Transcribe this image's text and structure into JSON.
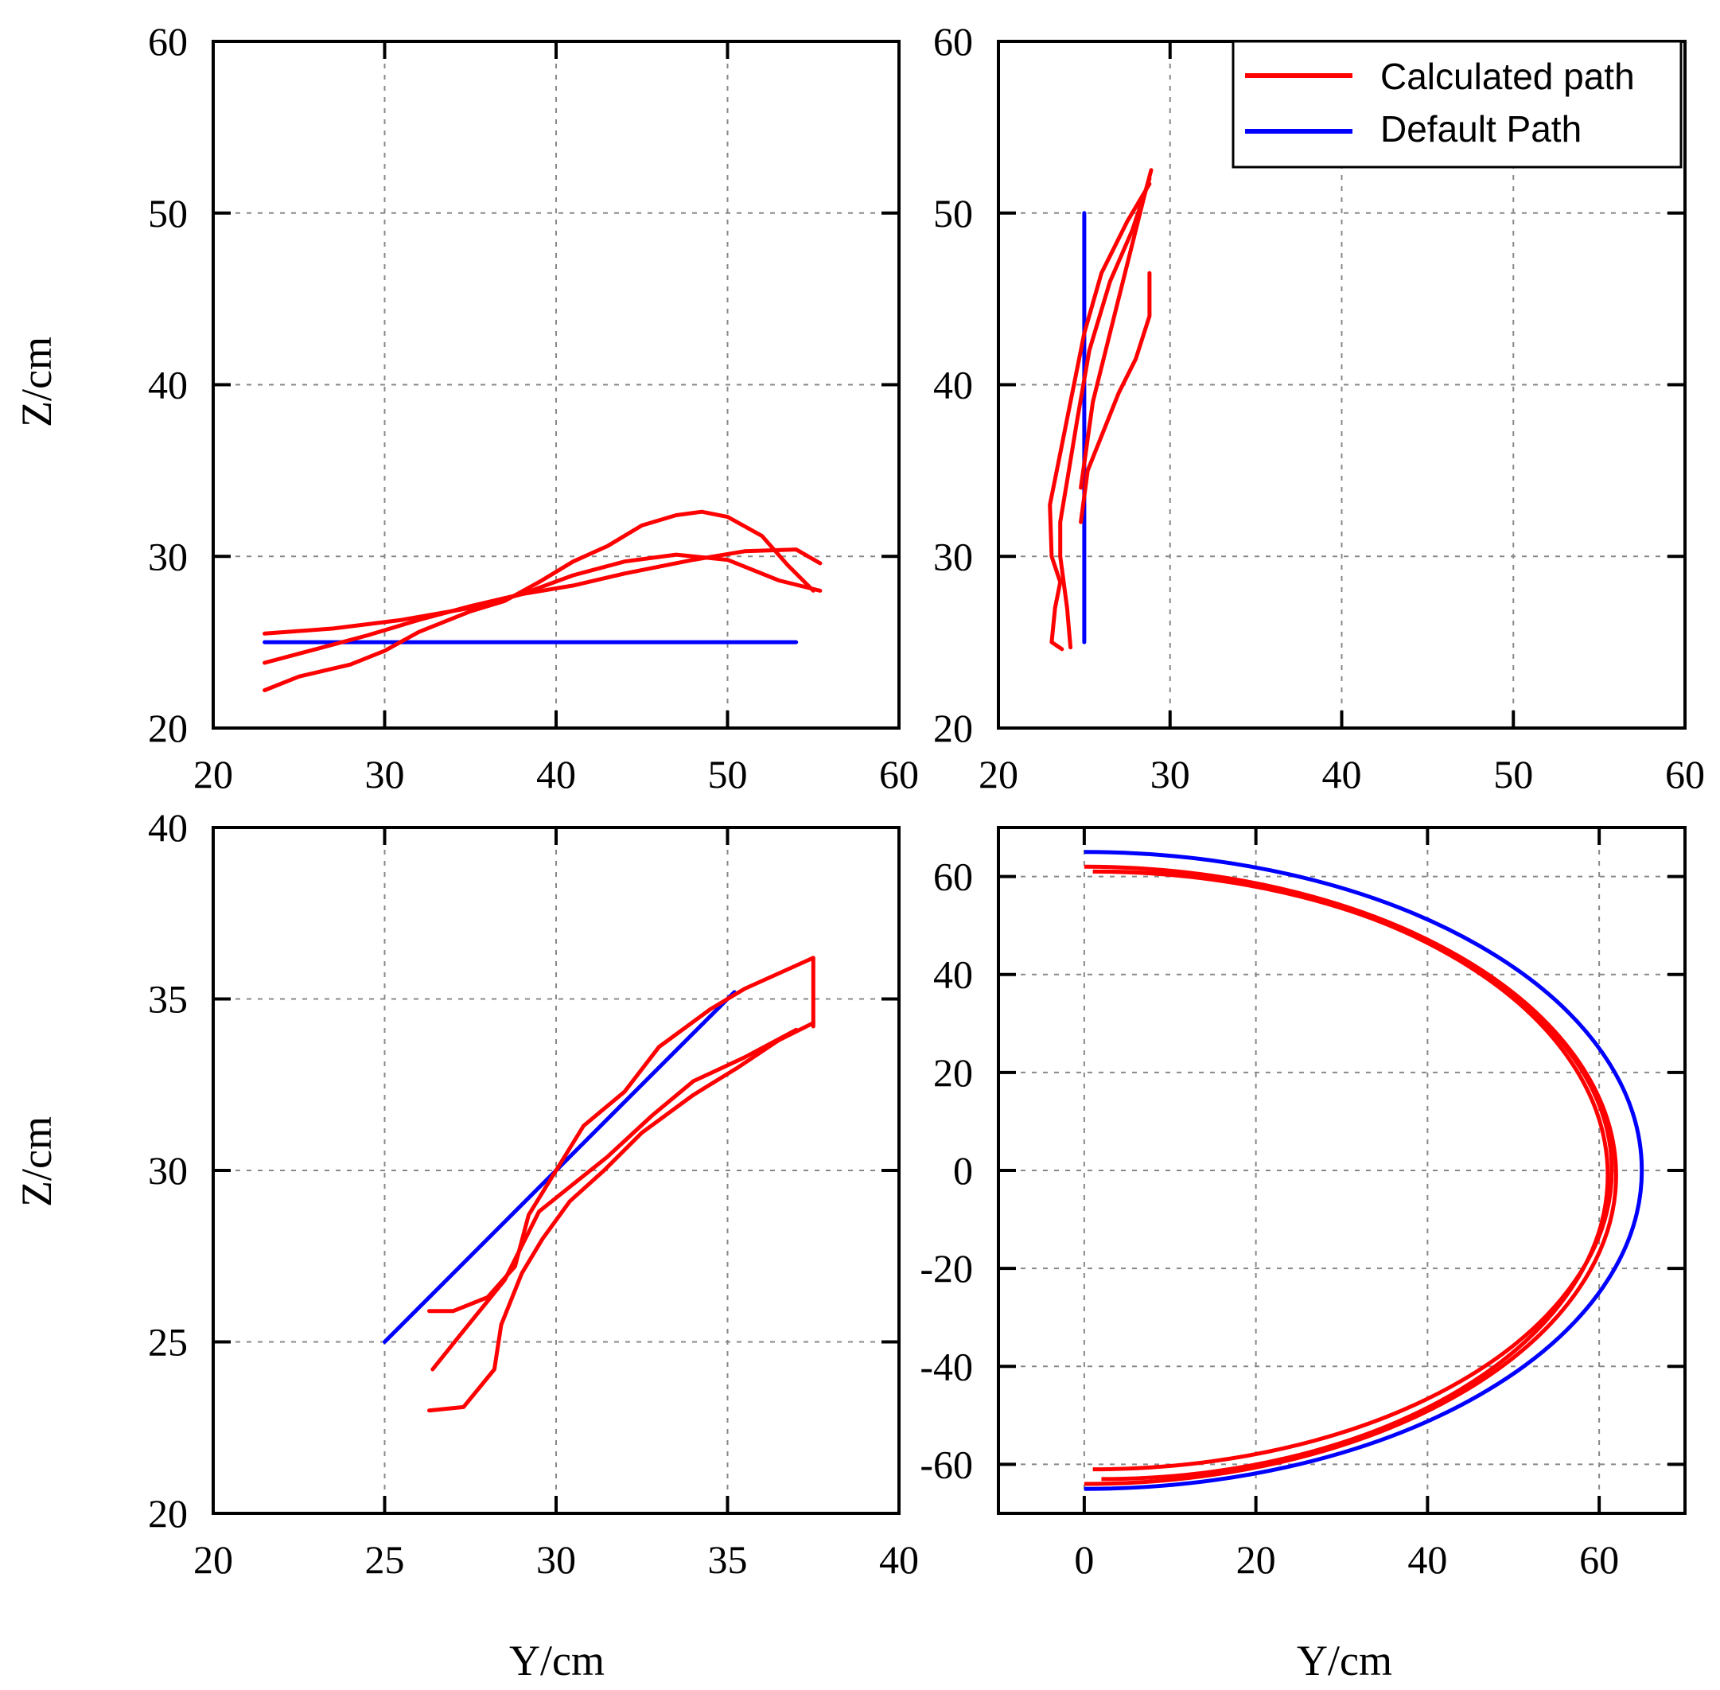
{
  "legend": {
    "calculated_label": "Calculated path",
    "default_label": "Default Path",
    "calculated_color": "#ff0000",
    "default_color": "#0000ff"
  },
  "chart_data": [
    {
      "type": "line",
      "panel": "top-left",
      "xlim": [
        20,
        60
      ],
      "ylim": [
        20,
        60
      ],
      "xticks": [
        20,
        30,
        40,
        50,
        60
      ],
      "yticks": [
        20,
        30,
        40,
        50,
        60
      ],
      "xlabel": "",
      "ylabel": "Z/cm",
      "grid": true,
      "series": [
        {
          "name": "Default Path",
          "color": "#0000ff",
          "points": [
            [
              23,
              25
            ],
            [
              54,
              25
            ]
          ]
        },
        {
          "name": "Calculated path",
          "color": "#ff0000",
          "points": [
            [
              23,
              25.5
            ],
            [
              27,
              25.8
            ],
            [
              31,
              26.3
            ],
            [
              35,
              27
            ],
            [
              38,
              27.8
            ],
            [
              41,
              28.3
            ],
            [
              44,
              29
            ],
            [
              48,
              29.8
            ],
            [
              51,
              30.3
            ],
            [
              54,
              30.4
            ],
            [
              55.4,
              29.6
            ]
          ]
        },
        {
          "name": "Calculated path",
          "color": "#ff0000",
          "points": [
            [
              23,
              23.8
            ],
            [
              26,
              24.6
            ],
            [
              29,
              25.4
            ],
            [
              32,
              26.3
            ],
            [
              35,
              27.1
            ],
            [
              38,
              27.8
            ],
            [
              41,
              28.9
            ],
            [
              44,
              29.7
            ],
            [
              47,
              30.1
            ],
            [
              50,
              29.8
            ],
            [
              53,
              28.6
            ],
            [
              55.4,
              28
            ]
          ]
        },
        {
          "name": "Calculated path",
          "color": "#ff0000",
          "points": [
            [
              23,
              22.2
            ],
            [
              25,
              23
            ],
            [
              28,
              23.7
            ],
            [
              30,
              24.5
            ],
            [
              32,
              25.6
            ],
            [
              35,
              26.8
            ],
            [
              37,
              27.4
            ],
            [
              39,
              28.5
            ],
            [
              41,
              29.7
            ],
            [
              43,
              30.6
            ],
            [
              45,
              31.8
            ],
            [
              47,
              32.4
            ],
            [
              48.5,
              32.6
            ],
            [
              50,
              32.3
            ],
            [
              52,
              31.2
            ],
            [
              53.5,
              29.5
            ],
            [
              55,
              28
            ]
          ]
        }
      ]
    },
    {
      "type": "line",
      "panel": "top-right",
      "xlim": [
        20,
        60
      ],
      "ylim": [
        20,
        60
      ],
      "xticks": [
        20,
        30,
        40,
        50,
        60
      ],
      "yticks": [
        20,
        30,
        40,
        50,
        60
      ],
      "xlabel": "",
      "ylabel": "",
      "grid": true,
      "series": [
        {
          "name": "Default Path",
          "color": "#0000ff",
          "points": [
            [
              25,
              25
            ],
            [
              25,
              50
            ]
          ]
        },
        {
          "name": "Calculated path",
          "color": "#ff0000",
          "points": [
            [
              24.8,
              34
            ],
            [
              25.5,
              39
            ],
            [
              26.5,
              43
            ],
            [
              27.5,
              47
            ],
            [
              28.5,
              51
            ],
            [
              28.9,
              52.5
            ]
          ]
        },
        {
          "name": "Calculated path",
          "color": "#ff0000",
          "points": [
            [
              23.7,
              24.6
            ],
            [
              23.1,
              25
            ],
            [
              23.3,
              27
            ],
            [
              23.6,
              28.5
            ],
            [
              23.1,
              30
            ],
            [
              23,
              33
            ],
            [
              23.6,
              36
            ],
            [
              24.2,
              39
            ],
            [
              25,
              43
            ],
            [
              26,
              46.5
            ],
            [
              27.5,
              49.5
            ],
            [
              28.8,
              51.7
            ]
          ]
        },
        {
          "name": "Calculated path",
          "color": "#ff0000",
          "points": [
            [
              24.2,
              24.7
            ],
            [
              24,
              27
            ],
            [
              23.6,
              30
            ],
            [
              23.6,
              32
            ],
            [
              24.1,
              35
            ],
            [
              24.6,
              38
            ],
            [
              25.3,
              42
            ],
            [
              26.5,
              46
            ],
            [
              27.8,
              49
            ],
            [
              28.8,
              52
            ]
          ]
        },
        {
          "name": "Calculated path",
          "color": "#ff0000",
          "points": [
            [
              24.8,
              32
            ],
            [
              25.2,
              35
            ],
            [
              26,
              37
            ],
            [
              27,
              39.5
            ],
            [
              28,
              41.5
            ],
            [
              28.8,
              44
            ],
            [
              28.8,
              46.5
            ]
          ]
        }
      ]
    },
    {
      "type": "line",
      "panel": "bottom-left",
      "xlim": [
        20,
        40
      ],
      "ylim": [
        20,
        40
      ],
      "xticks": [
        20,
        25,
        30,
        35,
        40
      ],
      "yticks": [
        20,
        25,
        30,
        35,
        40
      ],
      "xlabel": "Y/cm",
      "ylabel": "Z/cm",
      "grid": true,
      "series": [
        {
          "name": "Default Path",
          "color": "#0000ff",
          "points": [
            [
              25,
              25
            ],
            [
              35.2,
              35.2
            ]
          ]
        },
        {
          "name": "Calculated path",
          "color": "#ff0000",
          "points": [
            [
              26.3,
              25.9
            ],
            [
              27,
              25.9
            ],
            [
              28,
              26.3
            ],
            [
              28.8,
              27.2
            ],
            [
              29.2,
              28.7
            ],
            [
              30,
              30
            ],
            [
              30.8,
              31.3
            ],
            [
              32,
              32.3
            ],
            [
              33,
              33.6
            ],
            [
              34.5,
              34.7
            ],
            [
              35.5,
              35.3
            ],
            [
              37.5,
              36.2
            ],
            [
              37.5,
              34.2
            ]
          ]
        },
        {
          "name": "Calculated path",
          "color": "#ff0000",
          "points": [
            [
              26.4,
              24.2
            ],
            [
              27.2,
              25.2
            ],
            [
              28.5,
              26.8
            ],
            [
              29.5,
              28.8
            ],
            [
              30.5,
              29.6
            ],
            [
              31.5,
              30.4
            ],
            [
              32.8,
              31.6
            ],
            [
              34,
              32.6
            ],
            [
              35.5,
              33.3
            ],
            [
              37,
              34.1
            ]
          ]
        },
        {
          "name": "Calculated path",
          "color": "#ff0000",
          "points": [
            [
              26.3,
              23
            ],
            [
              27.3,
              23.1
            ],
            [
              28.2,
              24.2
            ],
            [
              28.4,
              25.5
            ],
            [
              29,
              27
            ],
            [
              29.6,
              28
            ],
            [
              30.4,
              29.1
            ],
            [
              31.4,
              30
            ],
            [
              32.5,
              31.1
            ],
            [
              34,
              32.2
            ],
            [
              35.3,
              33
            ],
            [
              36.5,
              33.8
            ],
            [
              37.5,
              34.3
            ]
          ]
        }
      ]
    },
    {
      "type": "line",
      "panel": "bottom-right",
      "xlim": [
        -10,
        70
      ],
      "ylim": [
        -70,
        70
      ],
      "xticks": [
        0,
        20,
        40,
        60
      ],
      "yticks": [
        -60,
        -40,
        -20,
        0,
        20,
        40,
        60
      ],
      "xlabel": "Y/cm",
      "ylabel": "",
      "grid": true,
      "series": [
        {
          "name": "Default Path",
          "color": "#0000ff",
          "type": "semi-ellipse",
          "center": [
            0,
            0
          ],
          "rx": 65,
          "ry": 65
        },
        {
          "name": "Calculated path",
          "color": "#ff0000",
          "type": "semi-ellipse",
          "center": [
            0,
            -1
          ],
          "rx": 62,
          "ry": 63
        },
        {
          "name": "Calculated path",
          "color": "#ff0000",
          "type": "semi-ellipse",
          "center": [
            1,
            0
          ],
          "rx": 60.5,
          "ry": 61
        },
        {
          "name": "Calculated path",
          "color": "#ff0000",
          "type": "semi-ellipse",
          "center": [
            2,
            -1
          ],
          "rx": 59,
          "ry": 62
        }
      ]
    }
  ]
}
